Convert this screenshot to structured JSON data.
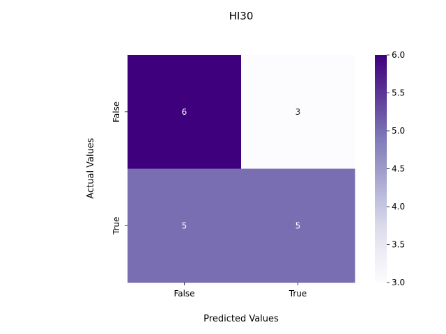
{
  "chart_data": {
    "type": "heatmap",
    "title": "HI30",
    "xlabel": "Predicted Values",
    "ylabel": "Actual Values",
    "x_categories": [
      "False",
      "True"
    ],
    "y_categories": [
      "False",
      "True"
    ],
    "values": [
      [
        6,
        3
      ],
      [
        5,
        5
      ]
    ],
    "cell_labels": [
      [
        "6",
        "3"
      ],
      [
        "5",
        "5"
      ]
    ],
    "colorbar": {
      "range": [
        3.0,
        6.0
      ],
      "ticks": [
        "3.0",
        "3.5",
        "4.0",
        "4.5",
        "5.0",
        "5.5",
        "6.0"
      ],
      "colormap": "Purples",
      "color_low": "#fcfbfd",
      "color_high": "#3f007d"
    }
  }
}
